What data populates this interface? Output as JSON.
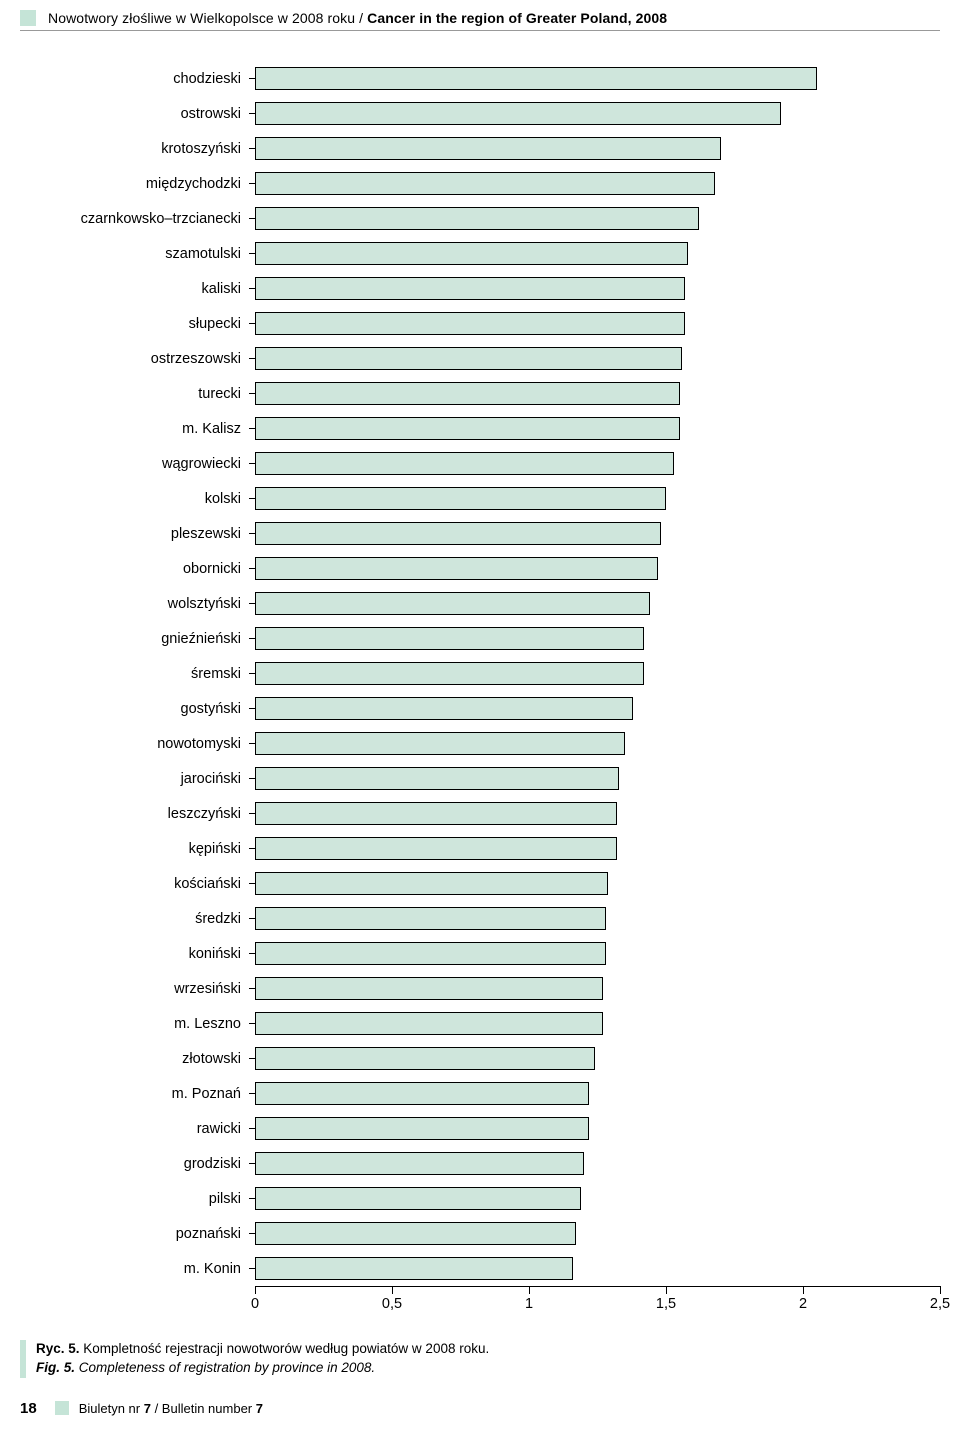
{
  "header": {
    "title_pl": "Nowotwory złośliwe w Wielkopolsce w 2008 roku / ",
    "title_en": "Cancer in the region of Greater Poland, 2008",
    "accent_color": "#c5e4d7"
  },
  "chart": {
    "type": "bar",
    "orientation": "horizontal",
    "bar_color": "#cfe6dc",
    "bar_border_color": "#000000",
    "background_color": "#ffffff",
    "xlim_min": 0,
    "xlim_max": 2.5,
    "xticks": [
      "0",
      "0,5",
      "1",
      "1,5",
      "2",
      "2,5"
    ],
    "xtick_values": [
      0,
      0.5,
      1.0,
      1.5,
      2.0,
      2.5
    ],
    "label_fontsize": 14.5,
    "rows": [
      {
        "label": "chodzieski",
        "value": 2.05
      },
      {
        "label": "ostrowski",
        "value": 1.92
      },
      {
        "label": "krotoszyński",
        "value": 1.7
      },
      {
        "label": "międzychodzki",
        "value": 1.68
      },
      {
        "label": "czarnkowsko–trzcianecki",
        "value": 1.62
      },
      {
        "label": "szamotulski",
        "value": 1.58
      },
      {
        "label": "kaliski",
        "value": 1.57
      },
      {
        "label": "słupecki",
        "value": 1.57
      },
      {
        "label": "ostrzeszowski",
        "value": 1.56
      },
      {
        "label": "turecki",
        "value": 1.55
      },
      {
        "label": "m. Kalisz",
        "value": 1.55
      },
      {
        "label": "wągrowiecki",
        "value": 1.53
      },
      {
        "label": "kolski",
        "value": 1.5
      },
      {
        "label": "pleszewski",
        "value": 1.48
      },
      {
        "label": "obornicki",
        "value": 1.47
      },
      {
        "label": "wolsztyński",
        "value": 1.44
      },
      {
        "label": "gnieźnieński",
        "value": 1.42
      },
      {
        "label": "śremski",
        "value": 1.42
      },
      {
        "label": "gostyński",
        "value": 1.38
      },
      {
        "label": "nowotomyski",
        "value": 1.35
      },
      {
        "label": "jarociński",
        "value": 1.33
      },
      {
        "label": "leszczyński",
        "value": 1.32
      },
      {
        "label": "kępiński",
        "value": 1.32
      },
      {
        "label": "kościański",
        "value": 1.29
      },
      {
        "label": "średzki",
        "value": 1.28
      },
      {
        "label": "koniński",
        "value": 1.28
      },
      {
        "label": "wrzesiński",
        "value": 1.27
      },
      {
        "label": "m. Leszno",
        "value": 1.27
      },
      {
        "label": "złotowski",
        "value": 1.24
      },
      {
        "label": "m. Poznań",
        "value": 1.22
      },
      {
        "label": "rawicki",
        "value": 1.22
      },
      {
        "label": "grodziski",
        "value": 1.2
      },
      {
        "label": "pilski",
        "value": 1.19
      },
      {
        "label": "poznański",
        "value": 1.17
      },
      {
        "label": "m. Konin",
        "value": 1.16
      }
    ]
  },
  "caption": {
    "accent_color": "#c5e4d7",
    "line1_b": "Ryc. 5.",
    "line1_rest": " Kompletność rejestracji nowotworów według powiatów w 2008 roku.",
    "line2_b": "Fig. 5.",
    "line2_rest": " Completeness of registration by province in 2008."
  },
  "footer": {
    "page_number": "18",
    "accent_color": "#c5e4d7",
    "text_pl": "Biuletyn nr ",
    "text_nr": "7",
    "text_sep": " / Bulletin number ",
    "text_nr2": "7"
  }
}
